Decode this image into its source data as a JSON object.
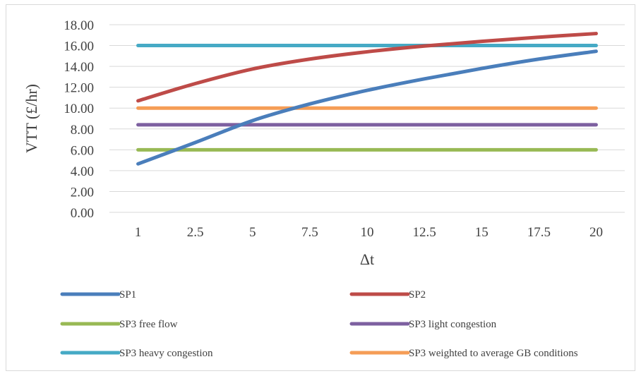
{
  "chart_data": {
    "type": "line",
    "title": "",
    "xlabel": "Δt",
    "ylabel": "VTT (£/hr)",
    "categories": [
      "1",
      "2.5",
      "5",
      "7.5",
      "10",
      "12.5",
      "15",
      "17.5",
      "20"
    ],
    "ylim": [
      0,
      18
    ],
    "yticks": [
      "0.00",
      "2.00",
      "4.00",
      "6.00",
      "8.00",
      "10.00",
      "12.00",
      "14.00",
      "16.00",
      "18.00"
    ],
    "grid": "horizontal",
    "legend_position": "bottom",
    "series": [
      {
        "name": "SP1",
        "color": "#4a7ebb",
        "values": [
          4.65,
          6.7,
          8.8,
          10.4,
          11.7,
          12.8,
          13.8,
          14.7,
          15.45
        ]
      },
      {
        "name": "SP2",
        "color": "#be4b48",
        "values": [
          10.7,
          12.35,
          13.75,
          14.7,
          15.4,
          15.95,
          16.4,
          16.8,
          17.15
        ]
      },
      {
        "name": "SP3 free flow",
        "color": "#98b954",
        "values": [
          6.0,
          6.0,
          6.0,
          6.0,
          6.0,
          6.0,
          6.0,
          6.0,
          6.0
        ]
      },
      {
        "name": "SP3 light congestion",
        "color": "#7d60a0",
        "values": [
          8.4,
          8.4,
          8.4,
          8.4,
          8.4,
          8.4,
          8.4,
          8.4,
          8.4
        ]
      },
      {
        "name": "SP3 heavy congestion",
        "color": "#46aac5",
        "values": [
          16.0,
          16.0,
          16.0,
          16.0,
          16.0,
          16.0,
          16.0,
          16.0,
          16.0
        ]
      },
      {
        "name": "SP3 weighted to average GB conditions",
        "color": "#f59d56",
        "values": [
          10.0,
          10.0,
          10.0,
          10.0,
          10.0,
          10.0,
          10.0,
          10.0,
          10.0
        ]
      }
    ]
  }
}
